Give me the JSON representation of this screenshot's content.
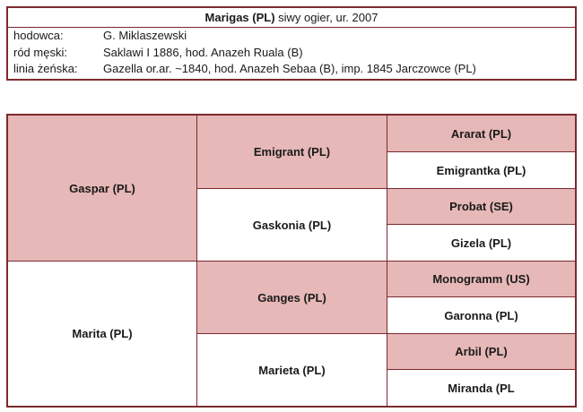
{
  "header": {
    "horse_name": "Marigas (PL)",
    "horse_desc": " siwy ogier, ur. 2007",
    "rows": [
      {
        "label": "hodowca:",
        "value": "G. Miklaszewski"
      },
      {
        "label": "ród męski:",
        "value": "Saklawi I 1886,  hod. Anazeh Ruala (B)"
      },
      {
        "label": "linia żeńska:",
        "value": "Gazella or.ar. ~1840, hod. Anazeh Sebaa (B), imp. 1845 Jarczowce (PL)"
      }
    ]
  },
  "pedigree": {
    "gen1": [
      "Gaspar (PL)",
      "Marita (PL)"
    ],
    "gen2": [
      "Emigrant (PL)",
      "Gaskonia (PL)",
      "Ganges (PL)",
      "Marieta (PL)"
    ],
    "gen3": [
      "Ararat (PL)",
      "Emigrantka (PL)",
      "Probat (SE)",
      "Gizela (PL)",
      "Monogramm (US)",
      "Garonna (PL)",
      "Arbil (PL)",
      "Miranda (PL"
    ]
  },
  "colors": {
    "border": "#7b2a2e",
    "sire_fill": "#e6b8b7",
    "dam_fill": "#ffffff"
  }
}
